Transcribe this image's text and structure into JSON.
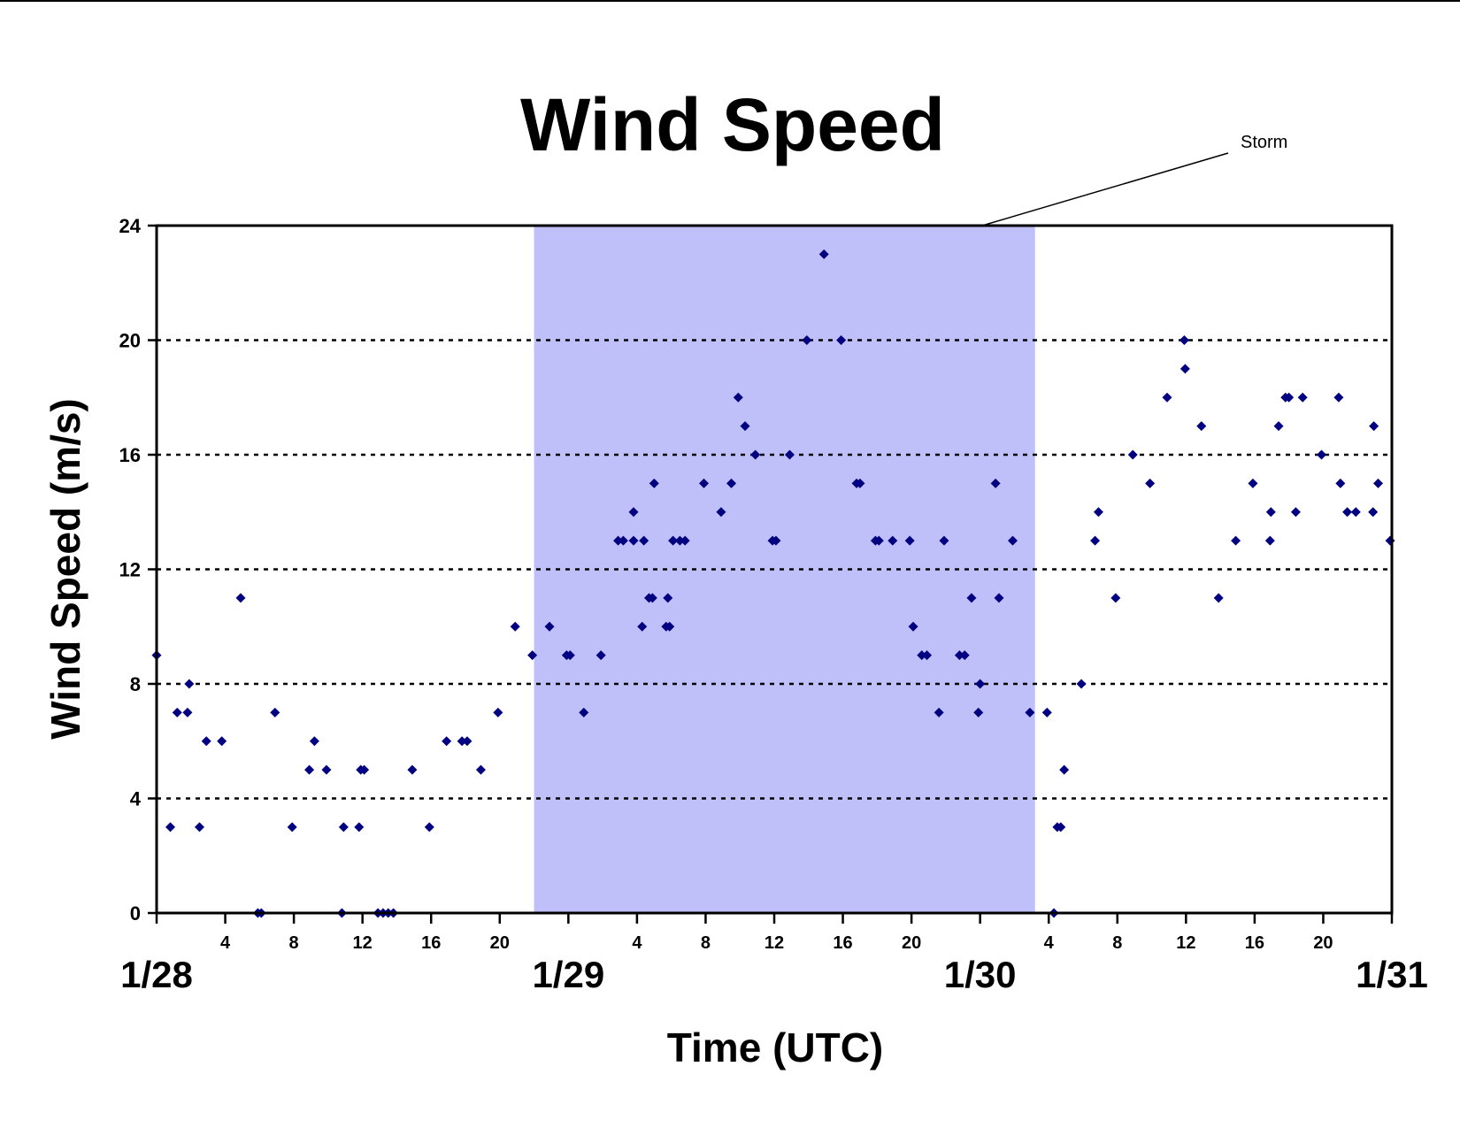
{
  "chart_data": {
    "type": "scatter",
    "title": "Wind Speed",
    "xlabel": "Time (UTC)",
    "ylabel": "Wind Speed (m/s)",
    "x_unit": "hours (UTC) from 1/28 00:00",
    "xlim": [
      0,
      72
    ],
    "ylim": [
      0,
      24
    ],
    "y_ticks": [
      0,
      4,
      8,
      12,
      16,
      20,
      24
    ],
    "x_tick_hours": [
      4,
      8,
      12,
      16,
      20
    ],
    "day_labels": [
      "1/28",
      "1/29",
      "1/30",
      "1/31"
    ],
    "grid": "horizontal dotted at 4, 8, 12, 16, 20",
    "legend": "none",
    "storm_band": {
      "label": "Storm",
      "x_start": 22,
      "x_end": 51.2,
      "color": "#bfbffa"
    },
    "marker_color": "#000080",
    "series": [
      {
        "name": "",
        "points": [
          [
            0,
            9
          ],
          [
            0.8,
            3
          ],
          [
            1.2,
            7
          ],
          [
            1.8,
            7
          ],
          [
            1.9,
            8
          ],
          [
            2.5,
            3
          ],
          [
            2.9,
            6
          ],
          [
            3.8,
            6
          ],
          [
            4.9,
            11
          ],
          [
            5.9,
            0
          ],
          [
            6.1,
            0
          ],
          [
            6.9,
            7
          ],
          [
            7.9,
            3
          ],
          [
            8.9,
            5
          ],
          [
            9.2,
            6
          ],
          [
            9.9,
            5
          ],
          [
            10.8,
            0
          ],
          [
            10.9,
            3
          ],
          [
            11.8,
            3
          ],
          [
            11.9,
            5
          ],
          [
            12.1,
            5
          ],
          [
            12.9,
            0
          ],
          [
            13.2,
            0
          ],
          [
            13.5,
            0
          ],
          [
            13.8,
            0
          ],
          [
            14.9,
            5
          ],
          [
            15.9,
            3
          ],
          [
            16.9,
            6
          ],
          [
            17.8,
            6
          ],
          [
            18.1,
            6
          ],
          [
            18.9,
            5
          ],
          [
            19.9,
            7
          ],
          [
            20.9,
            10
          ],
          [
            21.9,
            9
          ],
          [
            22.9,
            10
          ],
          [
            23.9,
            9
          ],
          [
            24.1,
            9
          ],
          [
            24.9,
            7
          ],
          [
            25.9,
            9
          ],
          [
            26.9,
            13
          ],
          [
            27.2,
            13
          ],
          [
            27.8,
            14
          ],
          [
            27.8,
            13
          ],
          [
            28.3,
            10
          ],
          [
            28.4,
            13
          ],
          [
            28.7,
            11
          ],
          [
            28.9,
            11
          ],
          [
            29,
            15
          ],
          [
            29.7,
            10
          ],
          [
            29.8,
            11
          ],
          [
            29.9,
            10
          ],
          [
            30.1,
            13
          ],
          [
            30.5,
            13
          ],
          [
            30.8,
            13
          ],
          [
            31.9,
            15
          ],
          [
            32.9,
            14
          ],
          [
            33.5,
            15
          ],
          [
            33.9,
            18
          ],
          [
            34.3,
            17
          ],
          [
            34.9,
            16
          ],
          [
            35.9,
            13
          ],
          [
            36.1,
            13
          ],
          [
            36.9,
            16
          ],
          [
            37.9,
            20
          ],
          [
            38.9,
            23
          ],
          [
            39.9,
            20
          ],
          [
            40.8,
            15
          ],
          [
            41,
            15
          ],
          [
            41.9,
            13
          ],
          [
            42.1,
            13
          ],
          [
            42.9,
            13
          ],
          [
            43.9,
            13
          ],
          [
            44.1,
            10
          ],
          [
            44.6,
            9
          ],
          [
            44.9,
            9
          ],
          [
            45.6,
            7
          ],
          [
            45.9,
            13
          ],
          [
            46.8,
            9
          ],
          [
            47.1,
            9
          ],
          [
            47.5,
            11
          ],
          [
            47.9,
            7
          ],
          [
            48,
            8
          ],
          [
            48.9,
            15
          ],
          [
            49.1,
            11
          ],
          [
            49.9,
            13
          ],
          [
            50.9,
            7
          ],
          [
            51.9,
            7
          ],
          [
            52.3,
            0
          ],
          [
            52.5,
            3
          ],
          [
            52.7,
            3
          ],
          [
            52.9,
            5
          ],
          [
            53.9,
            8
          ],
          [
            54.7,
            13
          ],
          [
            54.9,
            14
          ],
          [
            55.9,
            11
          ],
          [
            56.9,
            16
          ],
          [
            57.9,
            15
          ],
          [
            58.9,
            18
          ],
          [
            59.9,
            20
          ],
          [
            59.95,
            19
          ],
          [
            60.9,
            17
          ],
          [
            61.9,
            11
          ],
          [
            62.9,
            13
          ],
          [
            63.9,
            15
          ],
          [
            64.9,
            13
          ],
          [
            64.95,
            14
          ],
          [
            65.4,
            17
          ],
          [
            65.8,
            18
          ],
          [
            66,
            18
          ],
          [
            66.4,
            14
          ],
          [
            66.8,
            18
          ],
          [
            67.9,
            16
          ],
          [
            68.9,
            18
          ],
          [
            69,
            15
          ],
          [
            69.4,
            14
          ],
          [
            69.9,
            14
          ],
          [
            70.9,
            14
          ],
          [
            70.95,
            17
          ],
          [
            71.2,
            15
          ],
          [
            71.9,
            13
          ]
        ]
      }
    ]
  }
}
